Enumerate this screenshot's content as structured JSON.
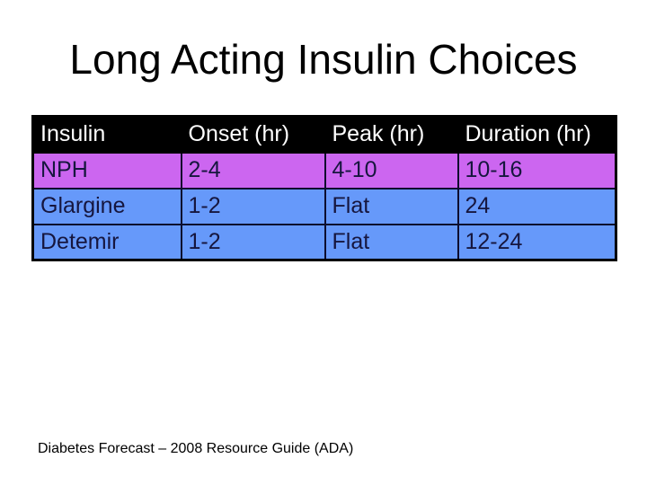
{
  "slide": {
    "title": "Long Acting Insulin Choices",
    "source_note": "Diabetes Forecast – 2008 Resource Guide (ADA)"
  },
  "table": {
    "columns": [
      "Insulin",
      "Onset (hr)",
      "Peak (hr)",
      "Duration (hr)"
    ],
    "rows": [
      {
        "insulin": "NPH",
        "onset": "2-4",
        "peak": "4-10",
        "duration": "10-16"
      },
      {
        "insulin": "Glargine",
        "onset": "1-2",
        "peak": "Flat",
        "duration": "24"
      },
      {
        "insulin": "Detemir",
        "onset": "1-2",
        "peak": "Flat",
        "duration": "12-24"
      }
    ],
    "colors": {
      "header_bg": "#000000",
      "header_text": "#ffffff",
      "nph_row_bg": "#cc66f0",
      "blue_row_bg": "#6699fa",
      "data_text": "#16163e",
      "grid_border": "#0d0d2e",
      "outer_border": "#000000",
      "slide_bg": "#ffffff"
    }
  }
}
